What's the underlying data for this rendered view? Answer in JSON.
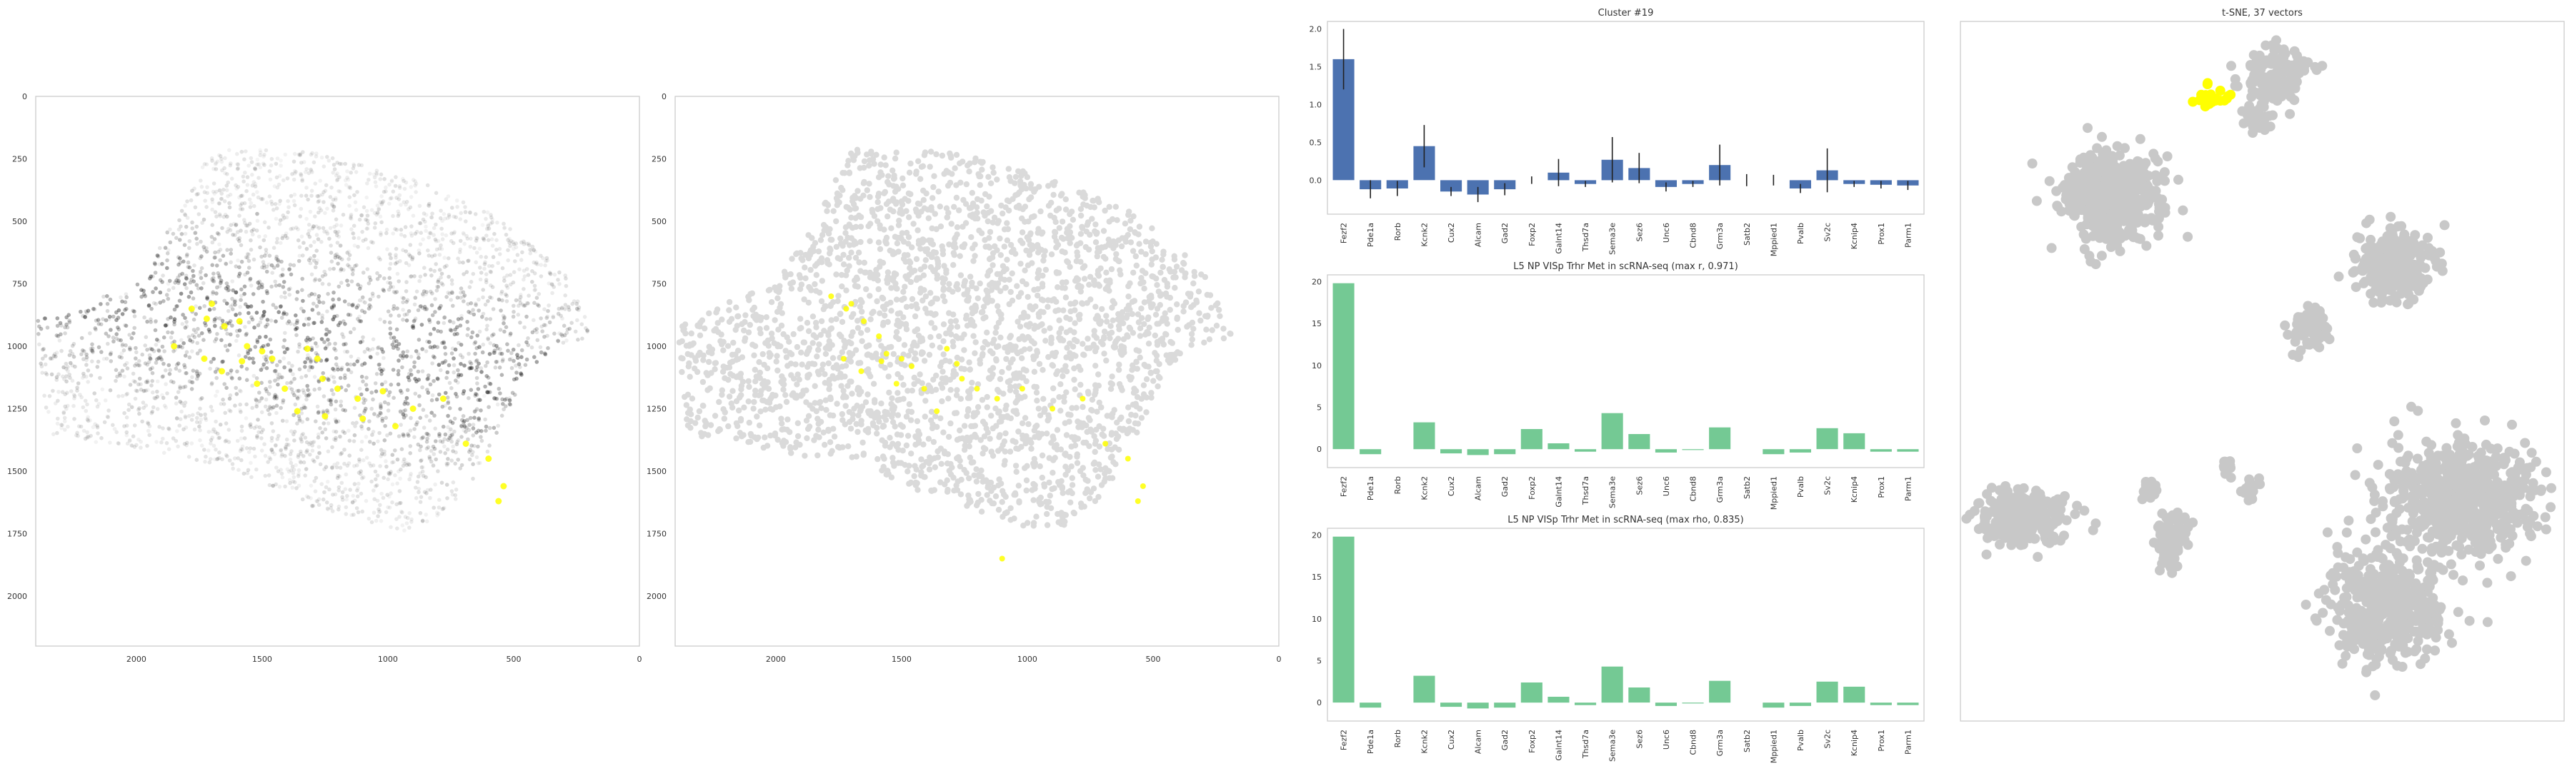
{
  "chart_data": [
    {
      "type": "scatter",
      "title": "",
      "xlim": [
        2400,
        0
      ],
      "ylim": [
        2200,
        0
      ],
      "x_ticks": [
        "2000",
        "1500",
        "1000",
        "500",
        "0"
      ],
      "y_ticks": [
        "0",
        "250",
        "500",
        "750",
        "1000",
        "1250",
        "1500",
        "1750",
        "2000"
      ],
      "highlight_color": "#ffff00",
      "background_color": "#000000",
      "highlight_points": [
        [
          1780,
          850
        ],
        [
          1720,
          890
        ],
        [
          1650,
          920
        ],
        [
          1590,
          900
        ],
        [
          1560,
          1000
        ],
        [
          1500,
          1020
        ],
        [
          1460,
          1050
        ],
        [
          1320,
          1010
        ],
        [
          1280,
          1050
        ],
        [
          1260,
          1130
        ],
        [
          1200,
          1170
        ],
        [
          1120,
          1210
        ],
        [
          1020,
          1180
        ],
        [
          900,
          1250
        ],
        [
          780,
          1210
        ],
        [
          690,
          1390
        ],
        [
          600,
          1450
        ],
        [
          540,
          1560
        ],
        [
          560,
          1620
        ],
        [
          1410,
          1170
        ],
        [
          1660,
          1100
        ],
        [
          1730,
          1050
        ],
        [
          1850,
          1000
        ],
        [
          1700,
          830
        ],
        [
          1580,
          1060
        ],
        [
          1520,
          1150
        ],
        [
          1360,
          1260
        ],
        [
          1250,
          1280
        ],
        [
          1100,
          1290
        ],
        [
          970,
          1320
        ]
      ]
    },
    {
      "type": "scatter",
      "title": "",
      "xlim": [
        2400,
        0
      ],
      "ylim": [
        2200,
        0
      ],
      "x_ticks": [
        "2000",
        "1500",
        "1000",
        "500",
        "0"
      ],
      "y_ticks": [
        "0",
        "250",
        "500",
        "750",
        "1000",
        "1250",
        "1500",
        "1750",
        "2000"
      ],
      "highlight_color": "#ffff00",
      "background_color": "#d9d9d9",
      "highlight_points": [
        [
          1780,
          800
        ],
        [
          1720,
          850
        ],
        [
          1650,
          900
        ],
        [
          1590,
          960
        ],
        [
          1560,
          1030
        ],
        [
          1500,
          1050
        ],
        [
          1460,
          1080
        ],
        [
          1320,
          1010
        ],
        [
          1280,
          1070
        ],
        [
          1260,
          1130
        ],
        [
          1200,
          1170
        ],
        [
          1120,
          1210
        ],
        [
          1020,
          1170
        ],
        [
          900,
          1250
        ],
        [
          780,
          1210
        ],
        [
          690,
          1390
        ],
        [
          600,
          1450
        ],
        [
          540,
          1560
        ],
        [
          560,
          1620
        ],
        [
          1410,
          1170
        ],
        [
          1660,
          1100
        ],
        [
          1730,
          1050
        ],
        [
          1100,
          1850
        ],
        [
          1700,
          830
        ],
        [
          1580,
          1060
        ],
        [
          1520,
          1150
        ],
        [
          1360,
          1260
        ]
      ]
    },
    {
      "type": "bar",
      "title": "Cluster #19",
      "categories": [
        "Fezf2",
        "Pde1a",
        "Rorb",
        "Kcnk2",
        "Cux2",
        "Alcam",
        "Gad2",
        "Foxp2",
        "Galnt14",
        "Thsd7a",
        "Sema3e",
        "Sez6",
        "Unc6",
        "Cbnd8",
        "Grm3a",
        "Satb2",
        "Mppied1",
        "Pvalb",
        "Sv2c",
        "Kcnip4",
        "Prox1",
        "Parm1"
      ],
      "values": [
        1.6,
        -0.12,
        -0.11,
        0.45,
        -0.15,
        -0.19,
        -0.12,
        0.0,
        0.1,
        -0.05,
        0.27,
        0.16,
        -0.09,
        -0.05,
        0.2,
        0.0,
        0.0,
        -0.11,
        0.13,
        -0.05,
        -0.06,
        -0.07
      ],
      "errors": [
        0.4,
        0.12,
        0.1,
        0.28,
        0.06,
        0.1,
        0.08,
        0.05,
        0.18,
        0.04,
        0.3,
        0.2,
        0.06,
        0.04,
        0.27,
        0.08,
        0.07,
        0.06,
        0.29,
        0.04,
        0.05,
        0.06
      ],
      "ylim": [
        -0.45,
        2.1
      ],
      "y_ticks": [
        "0.0",
        "0.5",
        "1.0",
        "1.5",
        "2.0"
      ],
      "color": "#4c72b0"
    },
    {
      "type": "bar",
      "title": "L5 NP VISp Trhr Met in scRNA-seq (max r, 0.971)",
      "categories": [
        "Fezf2",
        "Pde1a",
        "Rorb",
        "Kcnk2",
        "Cux2",
        "Alcam",
        "Gad2",
        "Foxp2",
        "Galnt14",
        "Thsd7a",
        "Sema3e",
        "Sez6",
        "Unc6",
        "Cbnd8",
        "Grm3a",
        "Satb2",
        "Mppied1",
        "Pvalb",
        "Sv2c",
        "Kcnip4",
        "Prox1",
        "Parm1"
      ],
      "values": [
        19.8,
        -0.6,
        0,
        3.2,
        -0.5,
        -0.7,
        -0.6,
        2.4,
        0.7,
        -0.3,
        4.3,
        1.8,
        -0.4,
        -0.1,
        2.6,
        0,
        -0.6,
        -0.4,
        2.5,
        1.9,
        -0.3,
        -0.3
      ],
      "ylim": [
        -2.2,
        20.8
      ],
      "y_ticks": [
        "0",
        "5",
        "10",
        "15",
        "20"
      ],
      "color": "#74c994"
    },
    {
      "type": "bar",
      "title": "L5 NP VISp Trhr Met in scRNA-seq (max rho, 0.835)",
      "categories": [
        "Fezf2",
        "Pde1a",
        "Rorb",
        "Kcnk2",
        "Cux2",
        "Alcam",
        "Gad2",
        "Foxp2",
        "Galnt14",
        "Thsd7a",
        "Sema3e",
        "Sez6",
        "Unc6",
        "Cbnd8",
        "Grm3a",
        "Satb2",
        "Mppied1",
        "Pvalb",
        "Sv2c",
        "Kcnip4",
        "Prox1",
        "Parm1"
      ],
      "values": [
        19.8,
        -0.6,
        0,
        3.2,
        -0.5,
        -0.7,
        -0.6,
        2.4,
        0.7,
        -0.3,
        4.3,
        1.8,
        -0.4,
        -0.1,
        2.6,
        0,
        -0.6,
        -0.4,
        2.5,
        1.9,
        -0.3,
        -0.3
      ],
      "ylim": [
        -2.2,
        20.8
      ],
      "y_ticks": [
        "0",
        "5",
        "10",
        "15",
        "20"
      ],
      "color": "#74c994"
    },
    {
      "type": "scatter",
      "title": "t-SNE, 37 vectors",
      "point_color": "#c8c8c8",
      "highlight_color": "#ffff00",
      "clusters": [
        {
          "cx": 0.52,
          "cy": 0.08,
          "rx": 0.05,
          "ry": 0.04,
          "n": 160
        },
        {
          "cx": 0.49,
          "cy": 0.14,
          "rx": 0.02,
          "ry": 0.02,
          "n": 40
        },
        {
          "cx": 0.25,
          "cy": 0.25,
          "rx": 0.08,
          "ry": 0.06,
          "n": 500
        },
        {
          "cx": 0.72,
          "cy": 0.35,
          "rx": 0.06,
          "ry": 0.05,
          "n": 280
        },
        {
          "cx": 0.58,
          "cy": 0.44,
          "rx": 0.03,
          "ry": 0.03,
          "n": 80
        },
        {
          "cx": 0.83,
          "cy": 0.68,
          "rx": 0.12,
          "ry": 0.08,
          "n": 650
        },
        {
          "cx": 0.7,
          "cy": 0.84,
          "rx": 0.09,
          "ry": 0.08,
          "n": 450
        },
        {
          "cx": 0.11,
          "cy": 0.71,
          "rx": 0.07,
          "ry": 0.04,
          "n": 260
        },
        {
          "cx": 0.35,
          "cy": 0.74,
          "rx": 0.03,
          "ry": 0.04,
          "n": 80
        },
        {
          "cx": 0.31,
          "cy": 0.67,
          "rx": 0.015,
          "ry": 0.015,
          "n": 20
        },
        {
          "cx": 0.48,
          "cy": 0.67,
          "rx": 0.015,
          "ry": 0.015,
          "n": 20
        },
        {
          "cx": 0.44,
          "cy": 0.64,
          "rx": 0.01,
          "ry": 0.02,
          "n": 15
        }
      ],
      "highlight_cluster": {
        "cx": 0.42,
        "cy": 0.11,
        "rx": 0.025,
        "ry": 0.02,
        "n": 25
      }
    }
  ]
}
